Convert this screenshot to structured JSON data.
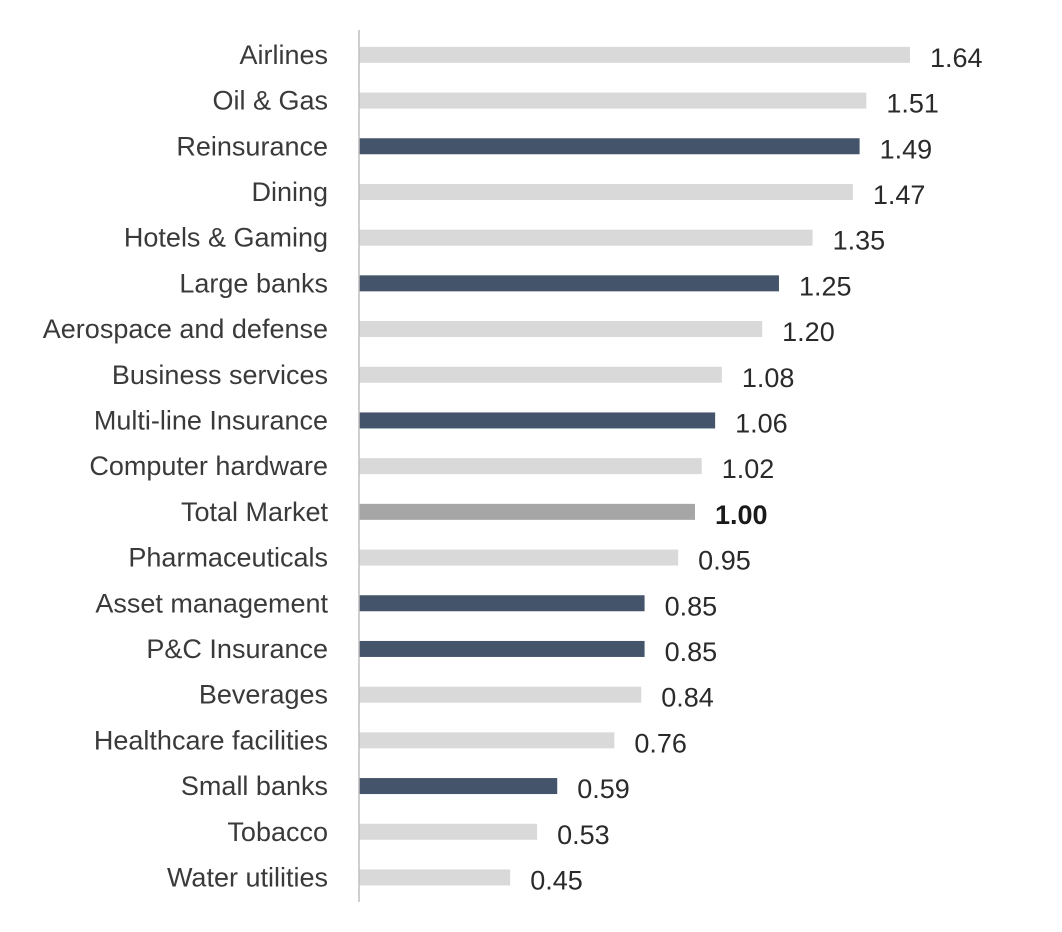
{
  "chart_data": {
    "type": "bar",
    "orientation": "horizontal",
    "title": "",
    "xlabel": "",
    "ylabel": "",
    "grid": false,
    "legend": "none",
    "xlim": [
      0,
      1.64
    ],
    "categories": [
      "Airlines",
      "Oil & Gas",
      "Reinsurance",
      "Dining",
      "Hotels & Gaming",
      "Large banks",
      "Aerospace and defense",
      "Business services",
      "Multi-line Insurance",
      "Computer hardware",
      "Total Market",
      "Pharmaceuticals",
      "Asset management",
      "P&C Insurance",
      "Beverages",
      "Healthcare facilities",
      "Small banks",
      "Tobacco",
      "Water utilities"
    ],
    "values": [
      1.64,
      1.51,
      1.49,
      1.47,
      1.35,
      1.25,
      1.2,
      1.08,
      1.06,
      1.02,
      1.0,
      0.95,
      0.85,
      0.85,
      0.84,
      0.76,
      0.59,
      0.53,
      0.45
    ],
    "value_labels": [
      "1.64",
      "1.51",
      "1.49",
      "1.47",
      "1.35",
      "1.25",
      "1.20",
      "1.08",
      "1.06",
      "1.02",
      "1.00",
      "0.95",
      "0.85",
      "0.85",
      "0.84",
      "0.76",
      "0.59",
      "0.53",
      "0.45"
    ],
    "bar_styles": [
      "light",
      "light",
      "dark",
      "light",
      "light",
      "dark",
      "light",
      "light",
      "dark",
      "light",
      "medium",
      "light",
      "dark",
      "dark",
      "light",
      "light",
      "dark",
      "light",
      "light"
    ],
    "bold_labels": [
      false,
      false,
      false,
      false,
      false,
      false,
      false,
      false,
      false,
      false,
      true,
      false,
      false,
      false,
      false,
      false,
      false,
      false,
      false
    ],
    "colors": {
      "light": "#d9d9d9",
      "dark": "#44546a",
      "medium": "#a6a6a6",
      "axis": "#bfbfbf"
    }
  }
}
